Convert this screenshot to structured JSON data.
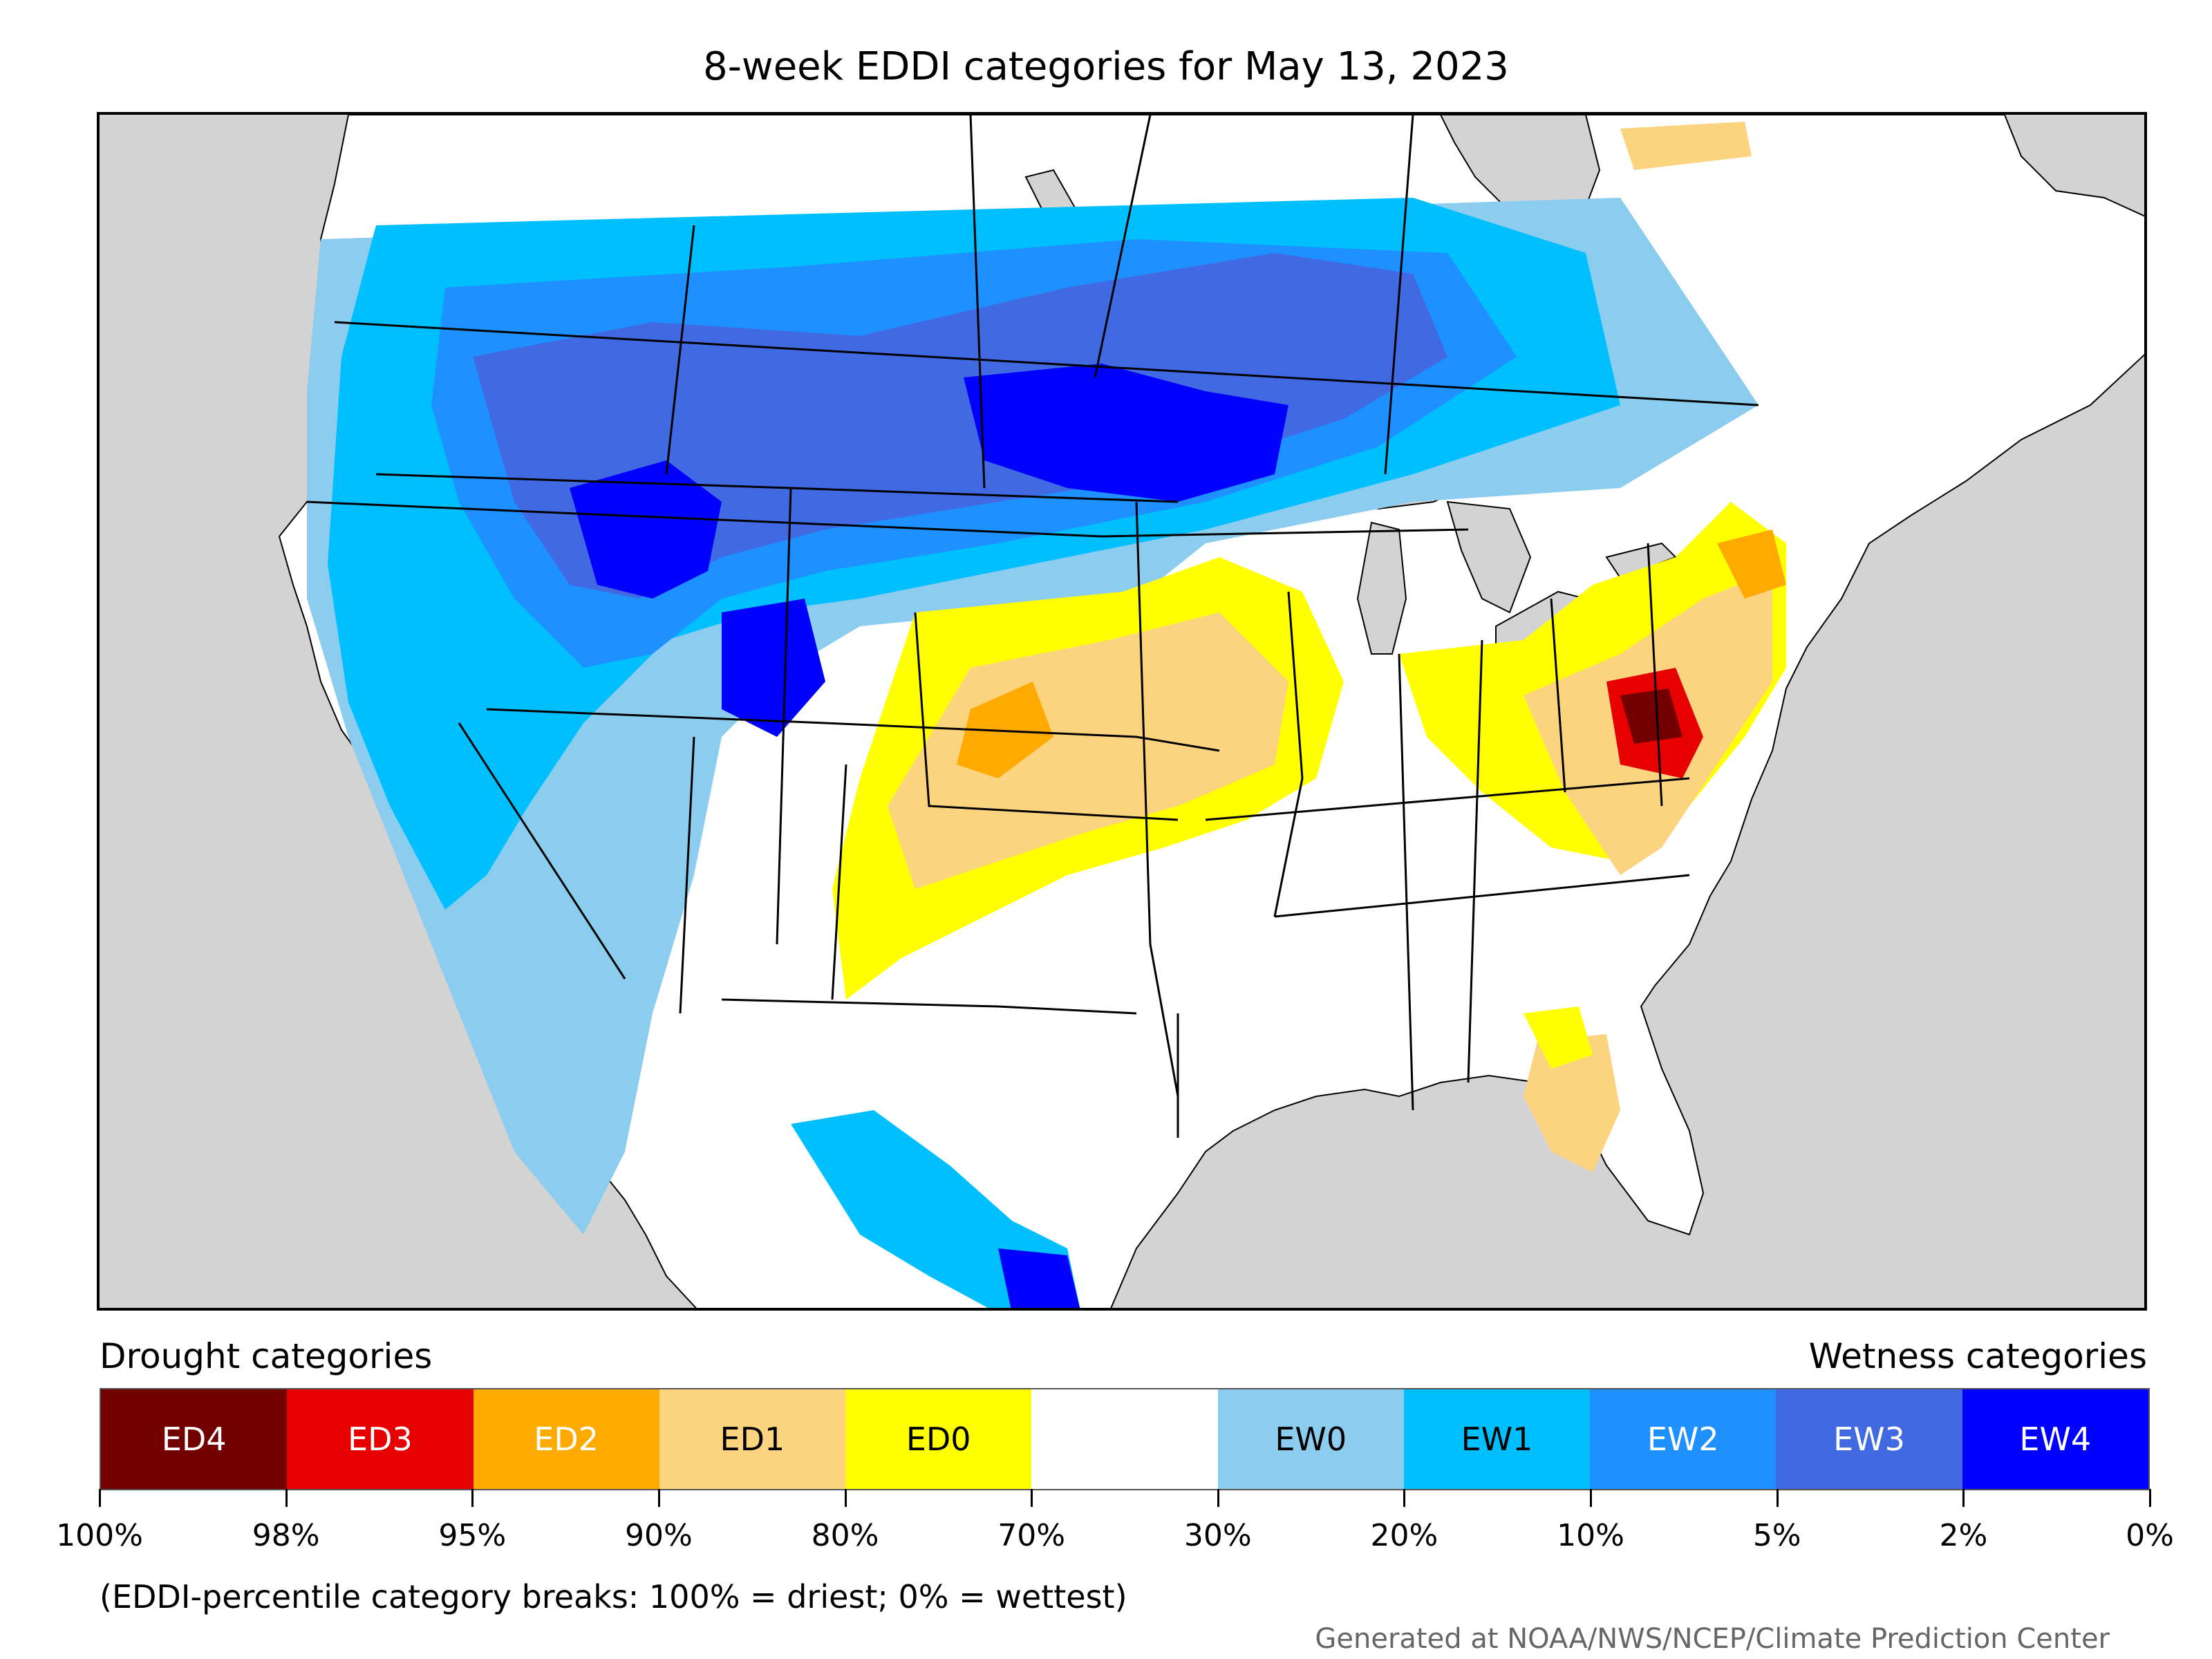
{
  "title": "8-week EDDI categories for May 13, 2023",
  "legend": {
    "drought_heading": "Drought categories",
    "wetness_heading": "Wetness categories",
    "categories": [
      {
        "label": "ED4",
        "color": "#730000",
        "text_color": "#ffffff"
      },
      {
        "label": "ED3",
        "color": "#e60000",
        "text_color": "#ffffff"
      },
      {
        "label": "ED2",
        "color": "#ffaa00",
        "text_color": "#ffffff"
      },
      {
        "label": "ED1",
        "color": "#fcd37f",
        "text_color": "#000000"
      },
      {
        "label": "ED0",
        "color": "#ffff00",
        "text_color": "#000000"
      },
      {
        "label": "",
        "color": "#ffffff",
        "text_color": "#000000"
      },
      {
        "label": "EW0",
        "color": "#8ccdef",
        "text_color": "#000000"
      },
      {
        "label": "EW1",
        "color": "#00bfff",
        "text_color": "#000000"
      },
      {
        "label": "EW2",
        "color": "#1e90ff",
        "text_color": "#ffffff"
      },
      {
        "label": "EW3",
        "color": "#4169e1",
        "text_color": "#ffffff"
      },
      {
        "label": "EW4",
        "color": "#0000ff",
        "text_color": "#ffffff"
      }
    ],
    "ticks": [
      "100%",
      "98%",
      "95%",
      "90%",
      "80%",
      "70%",
      "30%",
      "20%",
      "10%",
      "5%",
      "2%",
      "0%"
    ]
  },
  "caption": "(EDDI-percentile category breaks: 100% = driest; 0% = wettest)",
  "credit": "Generated at NOAA/NWS/NCEP/Climate Prediction Center",
  "map": {
    "background_color": "#d3d3d3",
    "land_color": "#ffffff",
    "boundary_color": "#000000"
  }
}
